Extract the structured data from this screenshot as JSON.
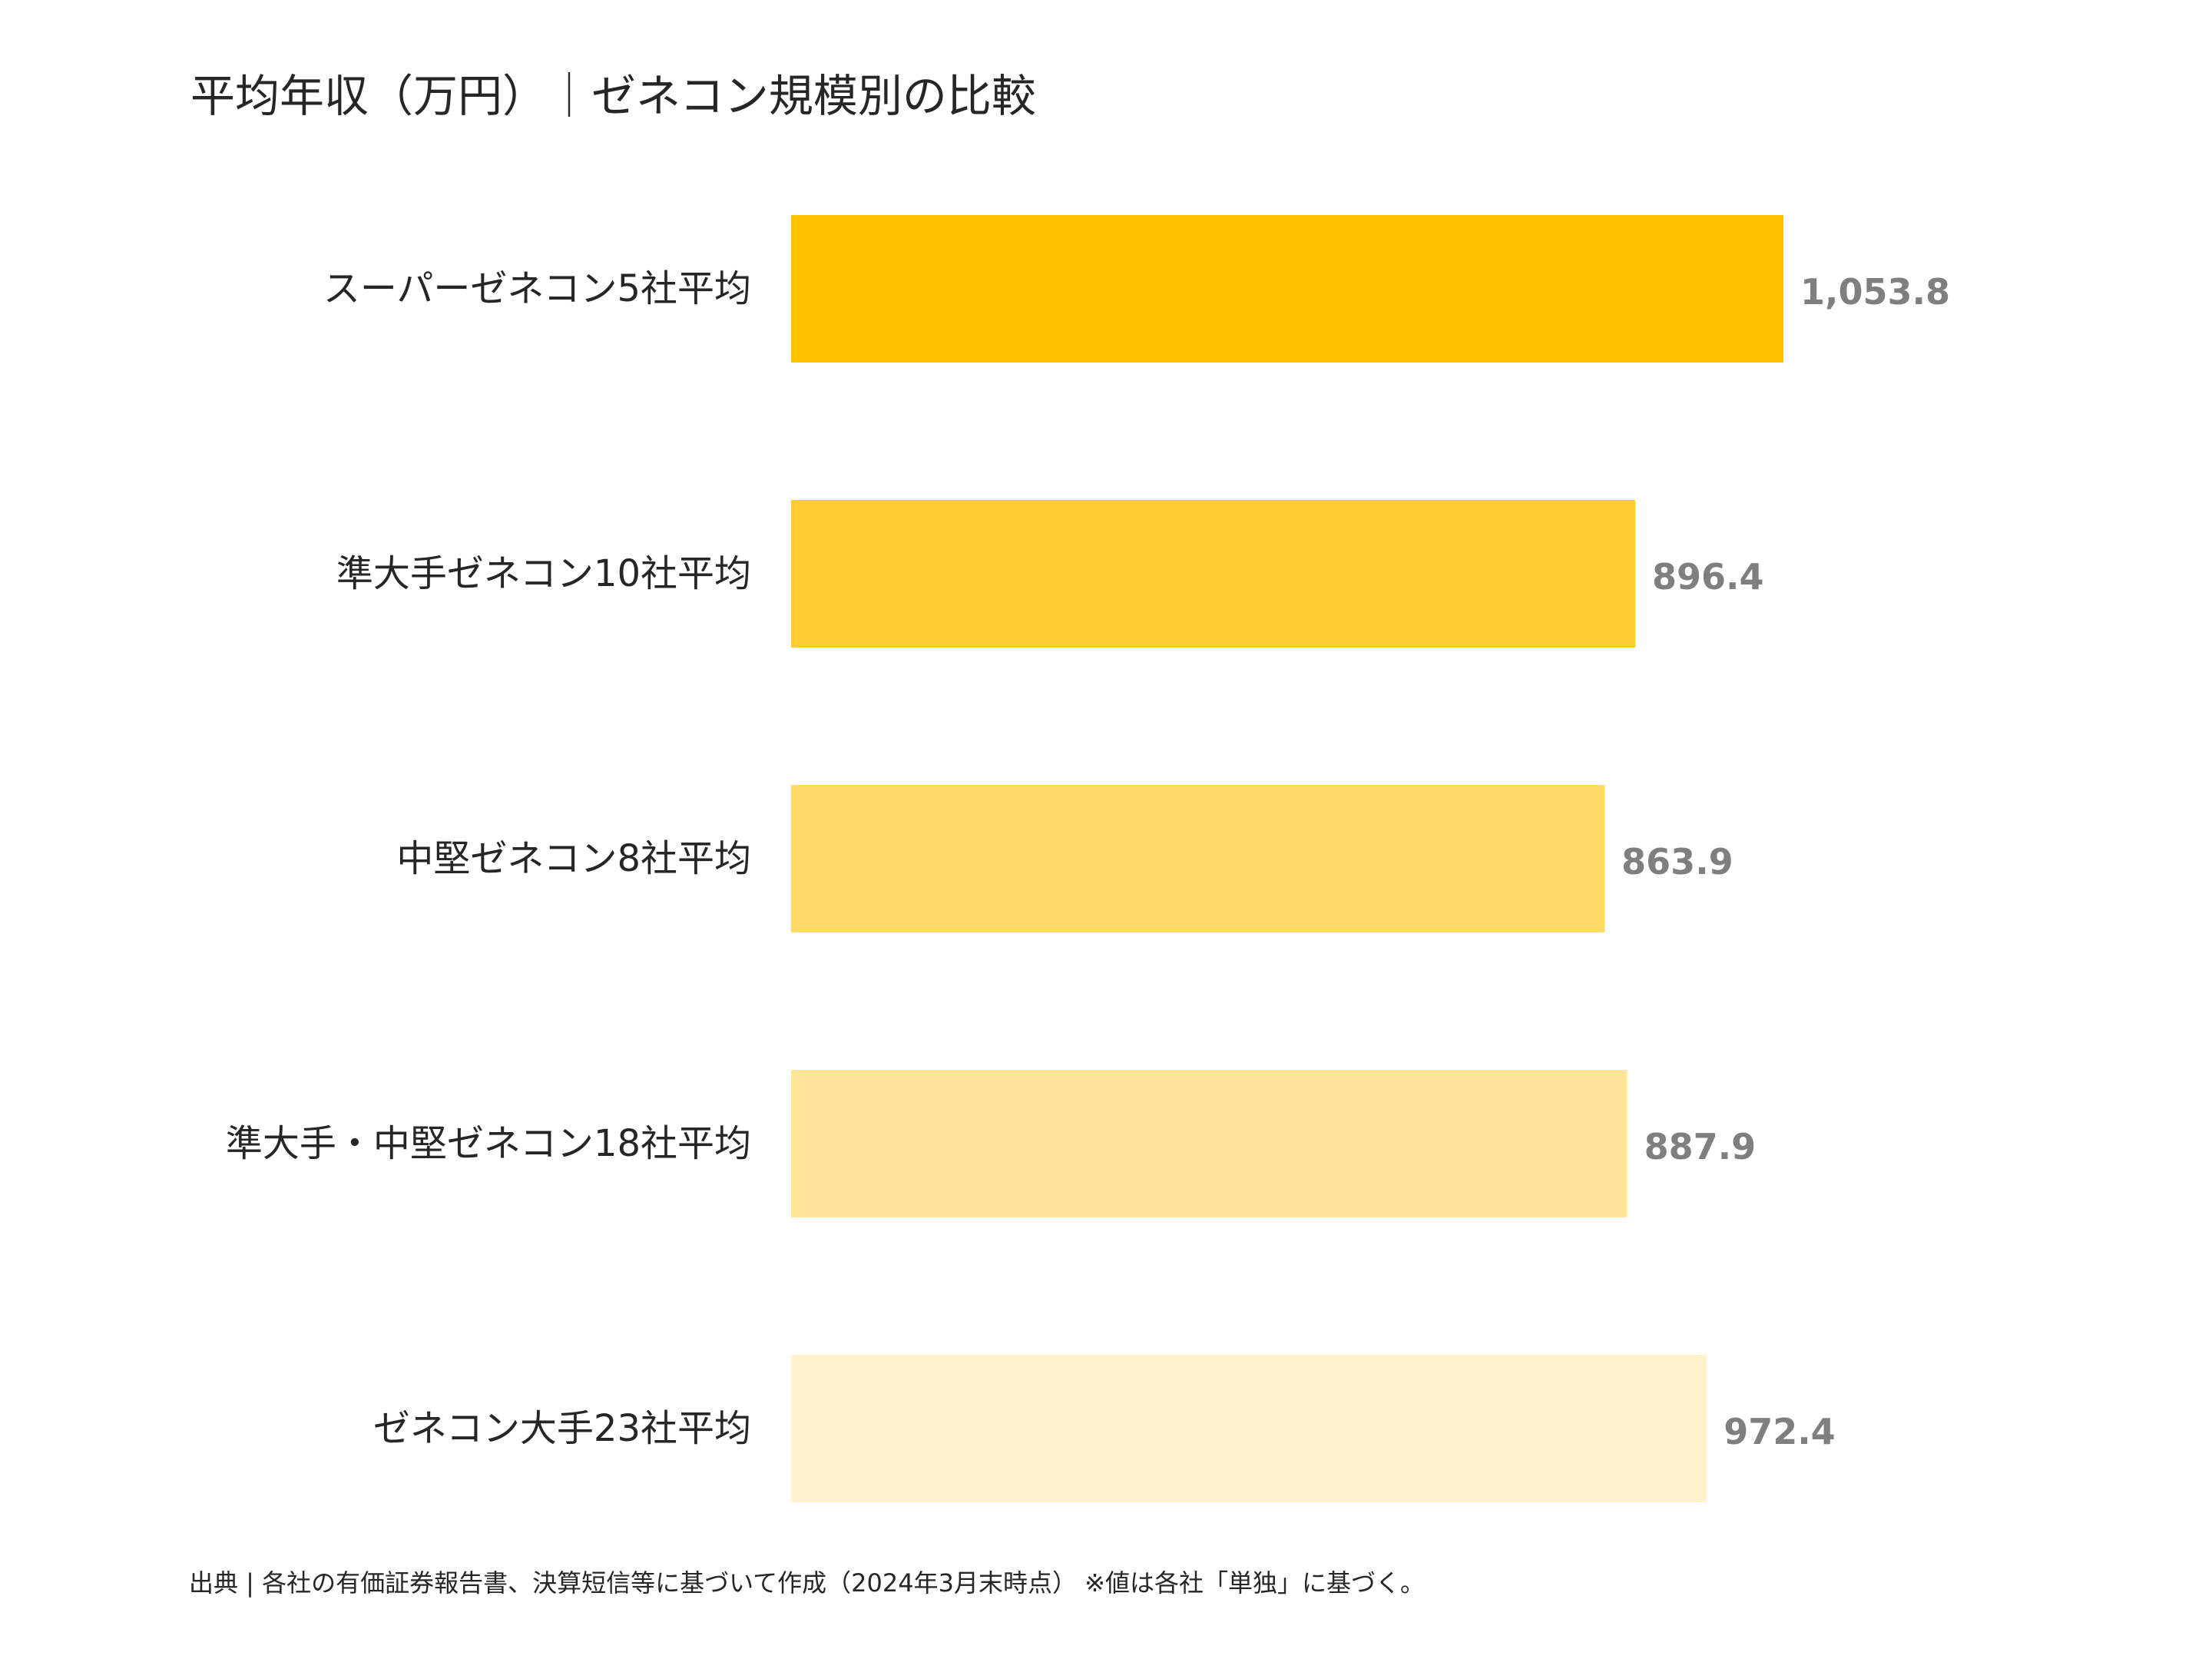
{
  "chart_data": {
    "type": "bar",
    "orientation": "horizontal",
    "title": "平均年収（万円）｜ゼネコン規模別の比較",
    "categories": [
      "スーパーゼネコン5社平均",
      "準大手ゼネコン10社平均",
      "中堅ゼネコン8社平均",
      "準大手・中堅ゼネコン18社平均",
      "ゼネコン大手23社平均"
    ],
    "values": [
      1053.8,
      896.4,
      863.9,
      887.9,
      972.4
    ],
    "value_labels": [
      "1,053.8",
      "896.4",
      "863.9",
      "887.9",
      "972.4"
    ],
    "bar_colors": [
      "#FFC000",
      "#FFCB33",
      "#FFD966",
      "#FFE699",
      "#FFF2CC"
    ],
    "xlim": [
      0,
      1053.8
    ],
    "xlabel": "",
    "ylabel": "",
    "grid": false,
    "legend": false,
    "value_label_color": "#7F7F7F"
  },
  "source_note": "出典 | 各社の有価証券報告書、決算短信等に基づいて作成（2024年3月末時点） ※値は各社「単独」に基づく。"
}
